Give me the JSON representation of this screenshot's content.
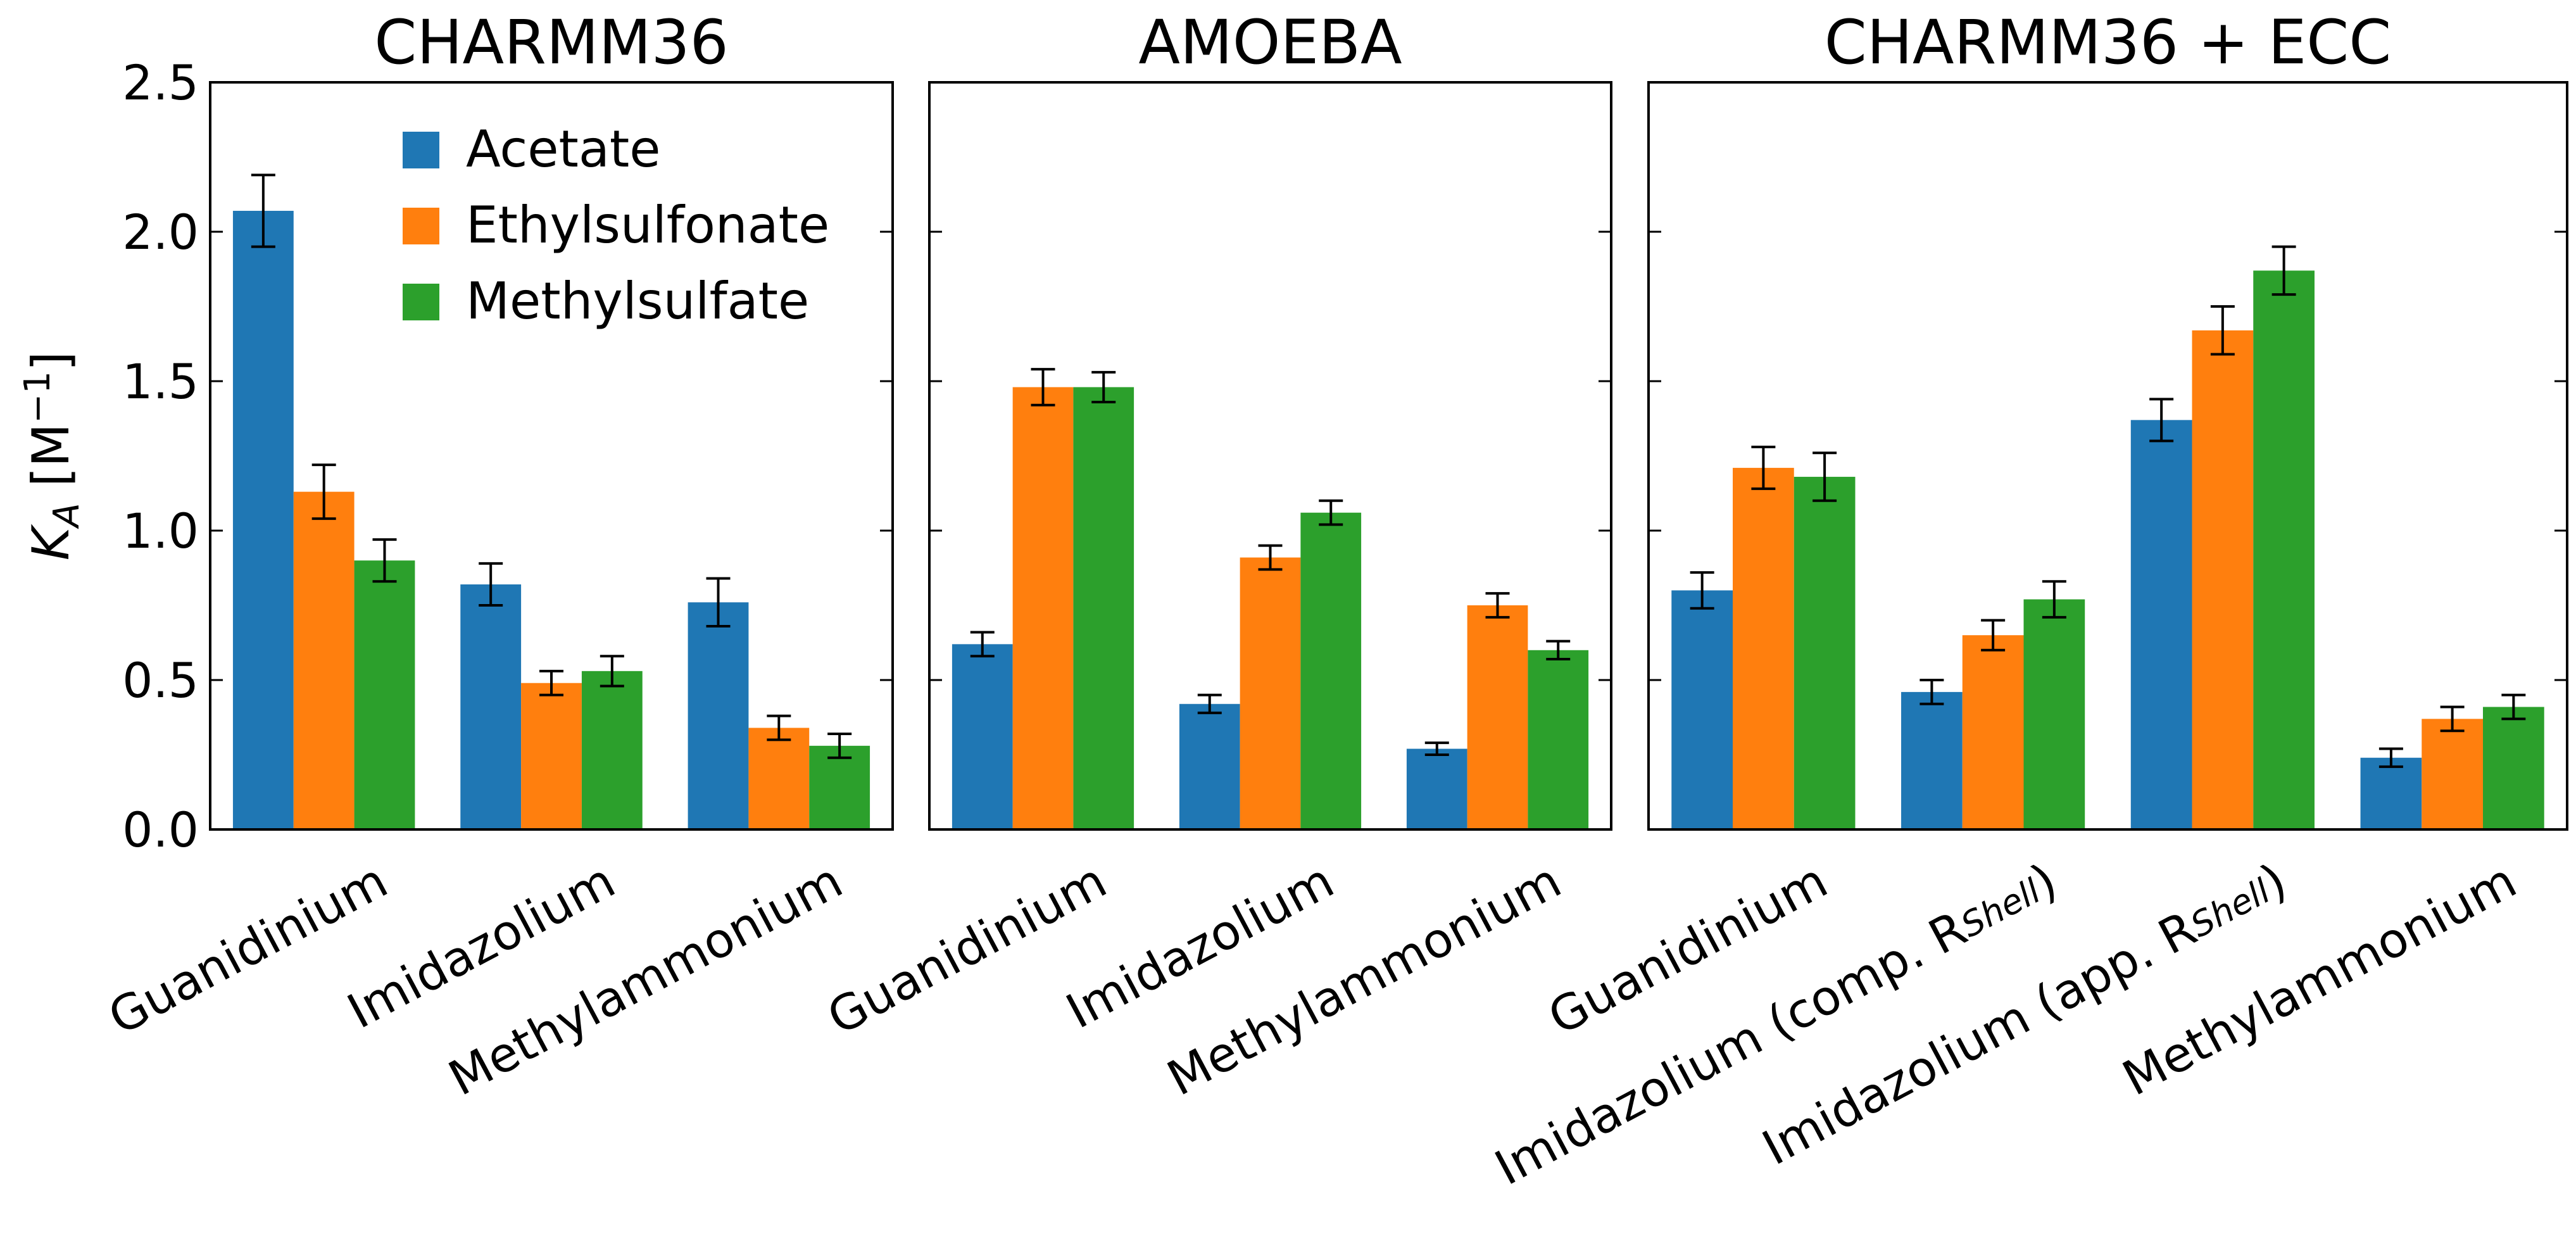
{
  "chart_data": {
    "type": "bar",
    "ylabel": {
      "main": "K",
      "sub": "A",
      "unit_open": " [M",
      "unit_sup": "−1",
      "unit_close": "]"
    },
    "ylim": [
      0,
      2.5
    ],
    "yticks": [
      "0.0",
      "0.5",
      "1.0",
      "1.5",
      "2.0",
      "2.5"
    ],
    "grid": false,
    "legend_position": "top-right",
    "series_names": [
      "Acetate",
      "Ethylsulfonate",
      "Methylsulfate"
    ],
    "colors": [
      "#1f77b4",
      "#ff7f0e",
      "#2ca02c"
    ],
    "panels": [
      {
        "title": "CHARMM36",
        "categories": [
          {
            "main": "Guanidinium",
            "sub": "",
            "suffix": ""
          },
          {
            "main": "Imidazolium",
            "sub": "",
            "suffix": ""
          },
          {
            "main": "Methylammonium",
            "sub": "",
            "suffix": ""
          }
        ],
        "series": [
          {
            "name": "Acetate",
            "values": [
              2.07,
              0.82,
              0.76
            ],
            "errors": [
              0.12,
              0.07,
              0.08
            ]
          },
          {
            "name": "Ethylsulfonate",
            "values": [
              1.13,
              0.49,
              0.34
            ],
            "errors": [
              0.09,
              0.04,
              0.04
            ]
          },
          {
            "name": "Methylsulfate",
            "values": [
              0.9,
              0.53,
              0.28
            ],
            "errors": [
              0.07,
              0.05,
              0.04
            ]
          }
        ]
      },
      {
        "title": "AMOEBA",
        "categories": [
          {
            "main": "Guanidinium",
            "sub": "",
            "suffix": ""
          },
          {
            "main": "Imidazolium",
            "sub": "",
            "suffix": ""
          },
          {
            "main": "Methylammonium",
            "sub": "",
            "suffix": ""
          }
        ],
        "series": [
          {
            "name": "Acetate",
            "values": [
              0.62,
              0.42,
              0.27
            ],
            "errors": [
              0.04,
              0.03,
              0.02
            ]
          },
          {
            "name": "Ethylsulfonate",
            "values": [
              1.48,
              0.91,
              0.75
            ],
            "errors": [
              0.06,
              0.04,
              0.04
            ]
          },
          {
            "name": "Methylsulfate",
            "values": [
              1.48,
              1.06,
              0.6
            ],
            "errors": [
              0.05,
              0.04,
              0.03
            ]
          }
        ]
      },
      {
        "title": "CHARMM36 + ECC",
        "categories": [
          {
            "main": "Guanidinium",
            "sub": "",
            "suffix": ""
          },
          {
            "main": "Imidazolium (comp. R",
            "sub": "Shell",
            "suffix": ")"
          },
          {
            "main": "Imidazolium (app. R",
            "sub": "Shell",
            "suffix": ")"
          },
          {
            "main": "Methylammonium",
            "sub": "",
            "suffix": ""
          }
        ],
        "series": [
          {
            "name": "Acetate",
            "values": [
              0.8,
              0.46,
              1.37,
              0.24
            ],
            "errors": [
              0.06,
              0.04,
              0.07,
              0.03
            ]
          },
          {
            "name": "Ethylsulfonate",
            "values": [
              1.21,
              0.65,
              1.67,
              0.37
            ],
            "errors": [
              0.07,
              0.05,
              0.08,
              0.04
            ]
          },
          {
            "name": "Methylsulfate",
            "values": [
              1.18,
              0.77,
              1.87,
              0.41
            ],
            "errors": [
              0.08,
              0.06,
              0.08,
              0.04
            ]
          }
        ]
      }
    ]
  }
}
